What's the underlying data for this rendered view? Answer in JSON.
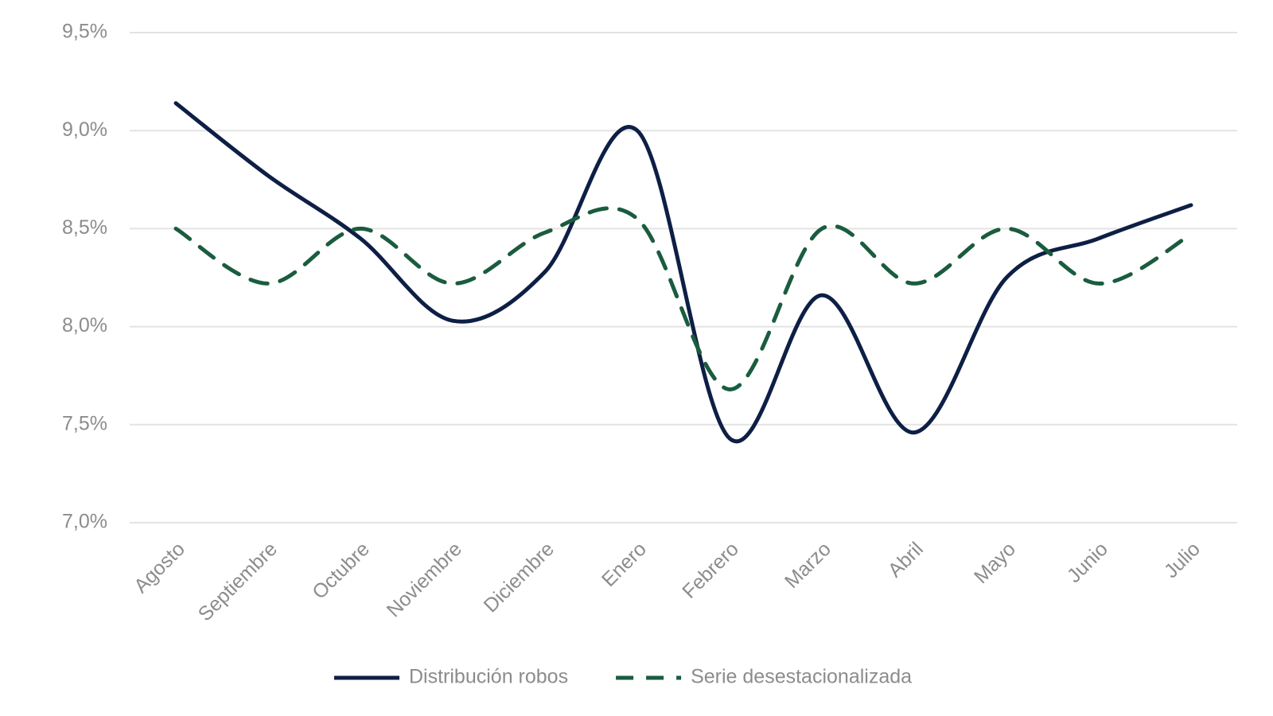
{
  "chart_data": {
    "type": "line",
    "categories": [
      "Agosto",
      "Septiembre",
      "Octubre",
      "Noviembre",
      "Diciembre",
      "Enero",
      "Febrero",
      "Marzo",
      "Abril",
      "Mayo",
      "Junio",
      "Julio"
    ],
    "series": [
      {
        "name": "Distribución robos",
        "color": "#0e1f45",
        "dash": "solid",
        "values": [
          9.14,
          8.77,
          8.45,
          8.03,
          8.28,
          9.0,
          7.43,
          8.16,
          7.46,
          8.25,
          8.45,
          8.62
        ]
      },
      {
        "name": "Serie desestacionalizada",
        "color": "#1a5c3e",
        "dash": "dashed",
        "values": [
          8.5,
          8.22,
          8.5,
          8.22,
          8.48,
          8.55,
          7.68,
          8.5,
          8.22,
          8.5,
          8.22,
          8.47
        ]
      }
    ],
    "ylim": [
      7.0,
      9.5
    ],
    "yticks": [
      {
        "value": 7.0,
        "label": "7,0%"
      },
      {
        "value": 7.5,
        "label": "7,5%"
      },
      {
        "value": 8.0,
        "label": "8,0%"
      },
      {
        "value": 8.5,
        "label": "8,5%"
      },
      {
        "value": 9.0,
        "label": "9,0%"
      },
      {
        "value": 9.5,
        "label": "9,5%"
      }
    ],
    "grid": true,
    "legend": "bottom"
  }
}
